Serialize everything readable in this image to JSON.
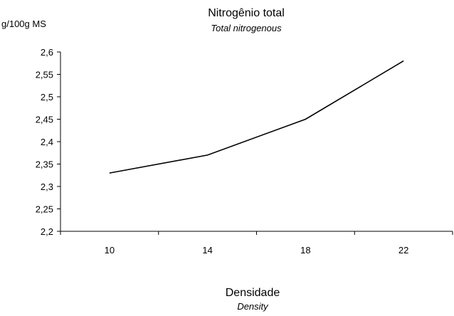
{
  "chart_data": {
    "type": "line",
    "title": "Nitrogênio total",
    "subtitle": "Total nitrogenous",
    "ylabel": "g/100g MS",
    "xlabel": "Densidade",
    "xlabel_sub": "Density",
    "categories": [
      "10",
      "14",
      "18",
      "22"
    ],
    "series": [
      {
        "values": [
          2.33,
          2.37,
          2.45,
          2.58
        ],
        "color": "#000000"
      }
    ],
    "ylim": [
      2.2,
      2.6
    ],
    "yticks": [
      "2,2",
      "2,25",
      "2,3",
      "2,35",
      "2,4",
      "2,45",
      "2,5",
      "2,55",
      "2,6"
    ],
    "grid": false,
    "legend": "none"
  }
}
